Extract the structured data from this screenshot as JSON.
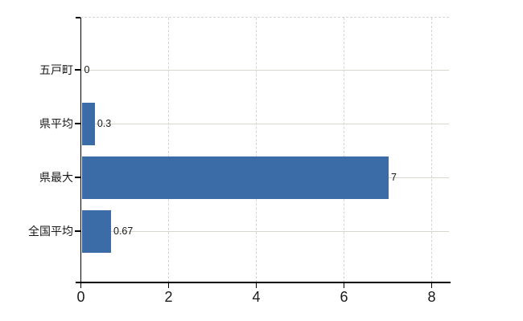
{
  "chart_data": {
    "type": "bar",
    "orientation": "horizontal",
    "title": "",
    "categories": [
      "五戸町",
      "県平均",
      "県最大",
      "全国平均"
    ],
    "values": [
      0,
      0.3,
      7,
      0.67
    ],
    "value_labels": [
      "0",
      "0.3",
      "7",
      "0.67"
    ],
    "x_ticks": [
      0,
      2,
      4,
      6,
      8
    ],
    "x_tick_labels": [
      "0",
      "2",
      "4",
      "6",
      "8"
    ],
    "xlim": [
      0,
      8.4
    ],
    "grid": "vertical-dashed",
    "category_lines": true,
    "legend_position": "none",
    "colors": {
      "bar": "#3c6ca8",
      "axis": "#000000",
      "text": "#1a1a1a",
      "vertical_gridline": "#d6d3d3",
      "category_gridline": "#d4d9cc",
      "background": "#ffffff"
    }
  }
}
